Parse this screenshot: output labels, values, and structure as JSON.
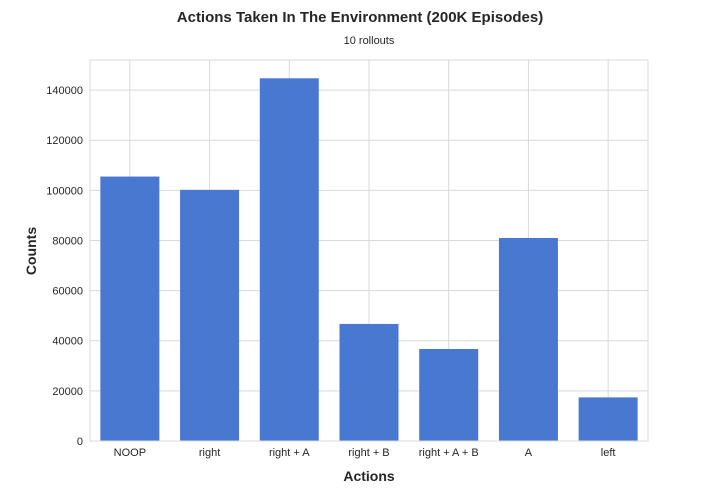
{
  "chart_data": {
    "type": "bar",
    "title": "Actions Taken In The Environment (200K Episodes)",
    "subtitle": "10 rollouts",
    "xlabel": "Actions",
    "ylabel": "Counts",
    "categories": [
      "NOOP",
      "right",
      "right + A",
      "right + B",
      "right + A + B",
      "A",
      "left"
    ],
    "values": [
      105500,
      100200,
      144700,
      46700,
      36700,
      81000,
      17400
    ],
    "ylim": [
      0,
      152000
    ],
    "yticks": [
      0,
      20000,
      40000,
      60000,
      80000,
      100000,
      120000,
      140000
    ],
    "ytick_labels": [
      "0",
      "20000",
      "40000",
      "60000",
      "80000",
      "100000",
      "120000",
      "140000"
    ],
    "grid": true,
    "bar_color": "#4878d0"
  }
}
